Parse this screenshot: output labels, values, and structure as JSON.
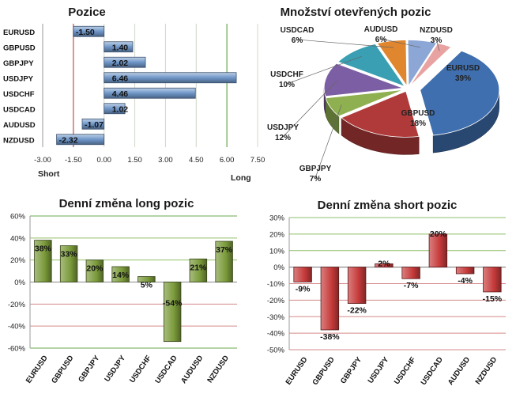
{
  "chart_data": [
    {
      "id": "pozice",
      "type": "bar",
      "orientation": "horizontal",
      "title": "Pozice",
      "categories": [
        "EURUSD",
        "GBPUSD",
        "GBPJPY",
        "USDJPY",
        "USDCHF",
        "USDCAD",
        "AUDUSD",
        "NZDUSD"
      ],
      "values": [
        -1.5,
        1.4,
        2.02,
        6.46,
        4.46,
        1.02,
        -1.07,
        -2.32
      ],
      "value_labels": [
        "-1.50",
        "1.40",
        "2.02",
        "6.46",
        "4.46",
        "1.02",
        "-1.07",
        "-2.32"
      ],
      "xlim": [
        -3.0,
        7.5
      ],
      "xticks": [
        "-3.00",
        "-1.50",
        "0.00",
        "1.50",
        "3.00",
        "4.50",
        "6.00",
        "7.50"
      ],
      "xlabel_left": "Short",
      "xlabel_right": "Long",
      "color": "#6f96c8",
      "grid": true
    },
    {
      "id": "mnozstvi",
      "type": "pie",
      "title": "Množství otevřených pozic",
      "slices": [
        {
          "label": "EURUSD",
          "pct_label": "39%",
          "value": 39,
          "color": "#3f6fae"
        },
        {
          "label": "GBPUSD",
          "pct_label": "18%",
          "value": 18,
          "color": "#b03a3a"
        },
        {
          "label": "GBPJPY",
          "pct_label": "7%",
          "value": 7,
          "color": "#8fb050"
        },
        {
          "label": "USDJPY",
          "pct_label": "12%",
          "value": 12,
          "color": "#7c5ea4"
        },
        {
          "label": "USDCHF",
          "pct_label": "10%",
          "value": 10,
          "color": "#3a9fb2"
        },
        {
          "label": "USDCAD",
          "pct_label": "6%",
          "value": 6,
          "color": "#e0862f"
        },
        {
          "label": "AUDUSD",
          "pct_label": "6%",
          "value": 6,
          "color": "#8ca7d6"
        },
        {
          "label": "NZDUSD",
          "pct_label": "3%",
          "value": 3,
          "color": "#e9a2a2"
        }
      ]
    },
    {
      "id": "long",
      "type": "bar",
      "title": "Denní změna long pozic",
      "categories": [
        "EURUSD",
        "GBPUSD",
        "GBPJPY",
        "USDJPY",
        "USDCHF",
        "USDCAD",
        "AUDUSD",
        "NZDUSD"
      ],
      "values": [
        38,
        33,
        20,
        14,
        5,
        -54,
        21,
        37
      ],
      "value_labels": [
        "38%",
        "33%",
        "20%",
        "14%",
        "5%",
        "-54%",
        "21%",
        "37%"
      ],
      "ylim": [
        -60,
        60
      ],
      "yticks": [
        "60%",
        "40%",
        "20%",
        "0%",
        "-20%",
        "-40%",
        "-60%"
      ],
      "color": "#7a9a3a",
      "grid": true
    },
    {
      "id": "short",
      "type": "bar",
      "title": "Denní změna short pozic",
      "categories": [
        "EURUSD",
        "GBPUSD",
        "GBPJPY",
        "USDJPY",
        "USDCHF",
        "USDCAD",
        "AUDUSD",
        "NZDUSD"
      ],
      "values": [
        -9,
        -38,
        -22,
        2,
        -7,
        20,
        -4,
        -15
      ],
      "value_labels": [
        "-9%",
        "-38%",
        "-22%",
        "2%",
        "-7%",
        "20%",
        "-4%",
        "-15%"
      ],
      "ylim": [
        -50,
        30
      ],
      "yticks": [
        "30%",
        "20%",
        "10%",
        "0%",
        "-10%",
        "-20%",
        "-30%",
        "-40%",
        "-50%"
      ],
      "color": "#c63a3a",
      "grid": true
    }
  ]
}
